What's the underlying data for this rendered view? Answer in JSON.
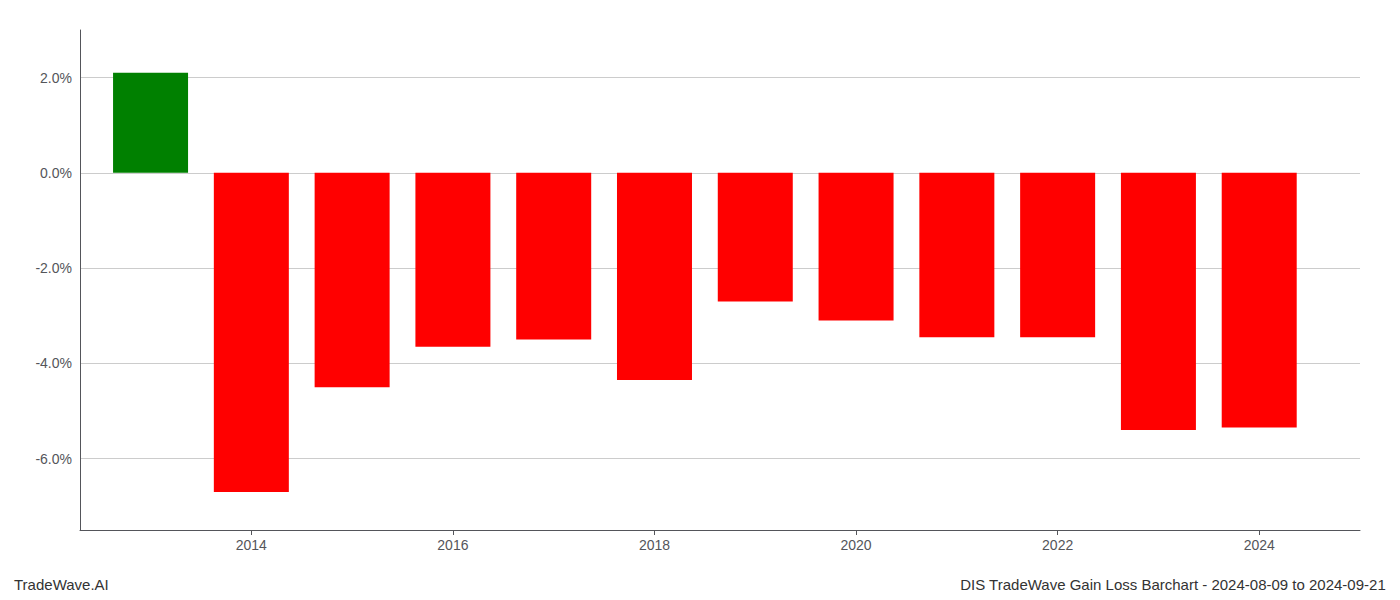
{
  "chart_data": {
    "type": "bar",
    "x": [
      2013,
      2014,
      2015,
      2016,
      2017,
      2018,
      2019,
      2020,
      2021,
      2022,
      2023,
      2024
    ],
    "values": [
      2.1,
      -6.7,
      -4.5,
      -3.65,
      -3.5,
      -4.35,
      -2.7,
      -3.1,
      -3.45,
      -3.45,
      -5.4,
      -5.35
    ],
    "colors": [
      "#008000",
      "#FF0000",
      "#FF0000",
      "#FF0000",
      "#FF0000",
      "#FF0000",
      "#FF0000",
      "#FF0000",
      "#FF0000",
      "#FF0000",
      "#FF0000",
      "#FF0000"
    ],
    "xlim": [
      2012.3,
      2025.0
    ],
    "xticks": [
      2014,
      2016,
      2018,
      2020,
      2022,
      2024
    ],
    "ylim": [
      -7.5,
      3.0
    ],
    "yticks": [
      {
        "value": 2.0,
        "label": "2.0%"
      },
      {
        "value": 0.0,
        "label": "0.0%"
      },
      {
        "value": -2.0,
        "label": "-2.0%"
      },
      {
        "value": -4.0,
        "label": "-4.0%"
      },
      {
        "value": -6.0,
        "label": "-6.0%"
      }
    ],
    "grid": true,
    "annotations": [
      "TradeWave.AI",
      "DIS TradeWave Gain Loss Barchart - 2024-08-09 to 2024-09-21"
    ]
  }
}
